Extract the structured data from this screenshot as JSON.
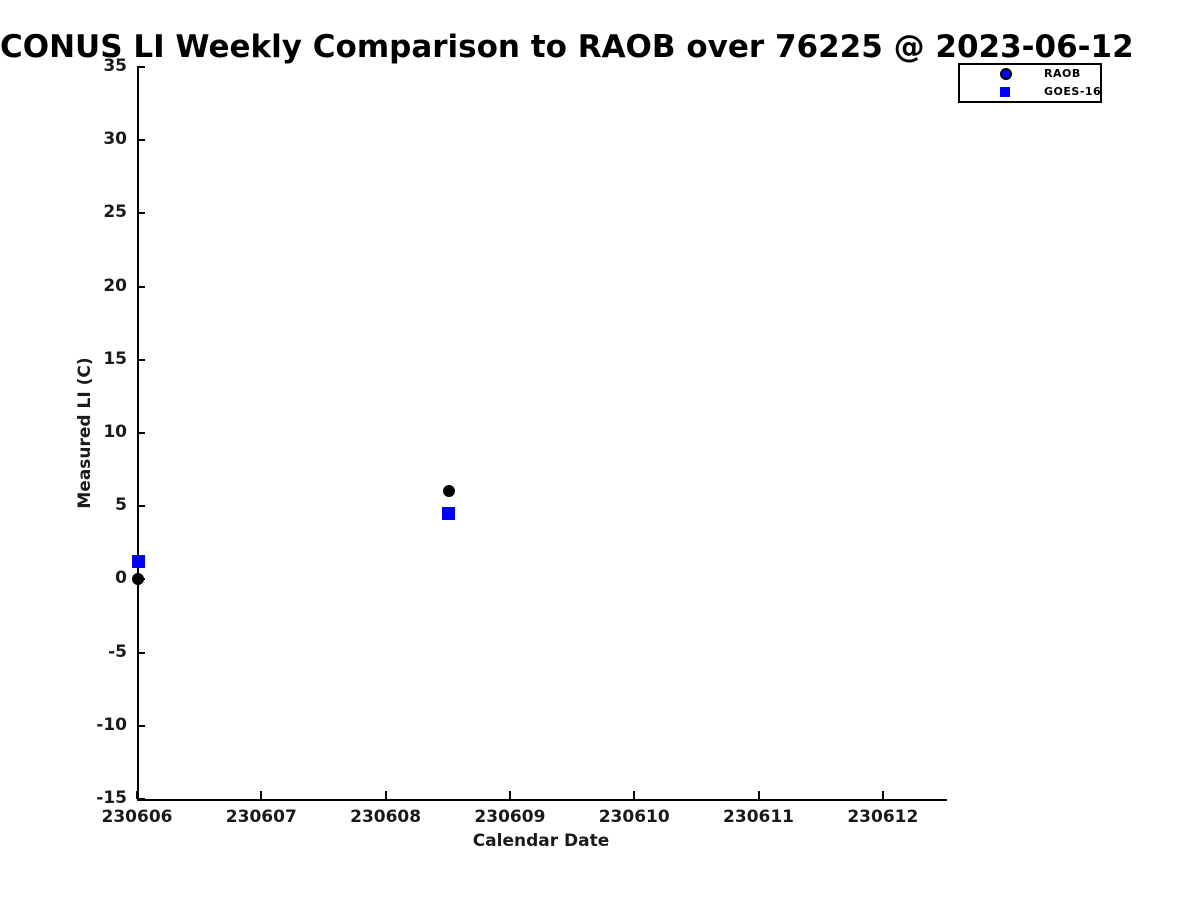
{
  "chart_data": {
    "type": "scatter",
    "title": "CONUS LI Weekly Comparison to RAOB over 76225 @ 2023-06-12",
    "xlabel": "Calendar Date",
    "ylabel": "Measured LI (C)",
    "xlim": [
      230606,
      230612.5
    ],
    "ylim": [
      -15,
      35
    ],
    "x_ticks": [
      230606,
      230607,
      230608,
      230609,
      230610,
      230611,
      230612
    ],
    "y_ticks": [
      -15,
      -10,
      -5,
      0,
      5,
      10,
      15,
      20,
      25,
      30,
      35
    ],
    "grid": false,
    "legend_position": "top-right",
    "series": [
      {
        "name": "RAOB",
        "marker": "circle",
        "marker_color": "#000000",
        "legend_marker_color": "#0000ff",
        "marker_edge_color": "#000000",
        "points": [
          {
            "x": 230606.0,
            "y": 0.1
          },
          {
            "x": 230608.5,
            "y": 6.1
          }
        ]
      },
      {
        "name": "GOES-16",
        "marker": "square",
        "marker_color": "#0000ff",
        "legend_marker_color": "#0000ff",
        "marker_edge_color": "#0000ff",
        "points": [
          {
            "x": 230606.0,
            "y": 1.3
          },
          {
            "x": 230608.5,
            "y": 4.6
          }
        ]
      }
    ]
  }
}
